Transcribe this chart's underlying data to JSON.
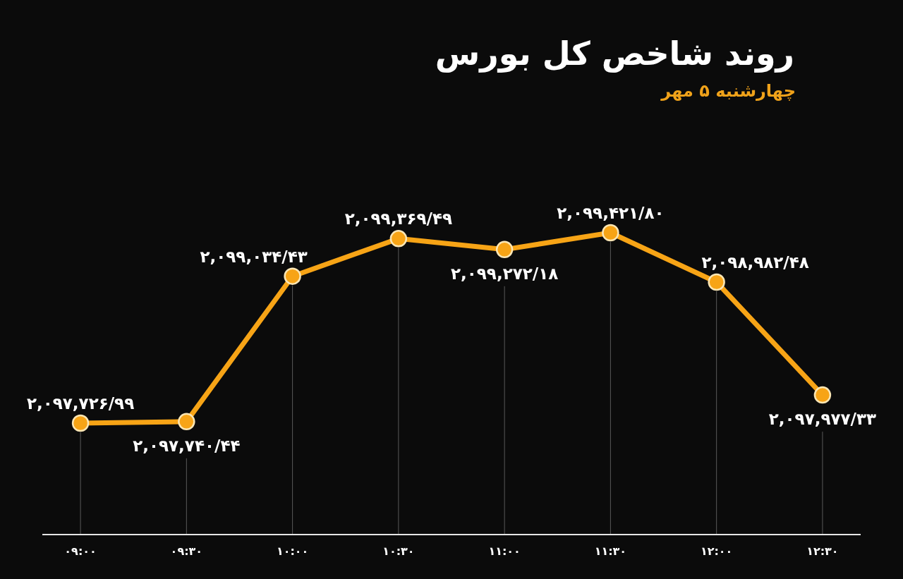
{
  "chart_data": {
    "type": "line",
    "title": "روند شاخص کل بورس",
    "subtitle": "چهارشنبه ۵ مهر",
    "categories": [
      "۰۹:۰۰",
      "۰۹:۳۰",
      "۱۰:۰۰",
      "۱۰:۳۰",
      "۱۱:۰۰",
      "۱۱:۳۰",
      "۱۲:۰۰",
      "۱۲:۳۰"
    ],
    "series": [
      {
        "color": "#f7a416",
        "values": [
          2097726.99,
          2097740.44,
          2099034.43,
          2099369.49,
          2099272.18,
          2099421.8,
          2098982.48,
          2097977.33
        ],
        "value_labels": [
          "۲,۰۹۷,۷۲۶/۹۹",
          "۲,۰۹۷,۷۴۰/۴۴",
          "۲,۰۹۹,۰۳۴/۴۳",
          "۲,۰۹۹,۳۶۹/۴۹",
          "۲,۰۹۹,۲۷۲/۱۸",
          "۲,۰۹۹,۴۲۱/۸۰",
          "۲,۰۹۸,۹۸۲/۴۸",
          "۲,۰۹۷,۹۷۷/۳۳"
        ]
      }
    ],
    "marker": "circle",
    "grid": "x",
    "tick_labels": "x"
  }
}
